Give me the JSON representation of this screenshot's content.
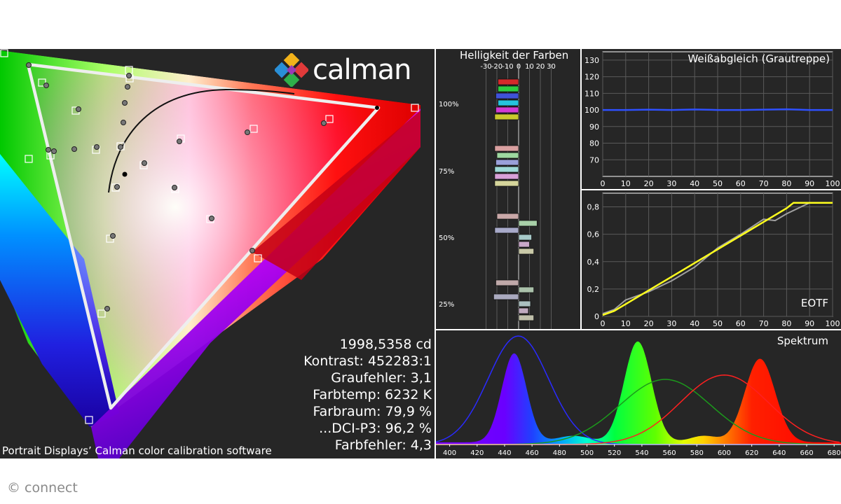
{
  "branding": {
    "logo_text": "calman",
    "caption": "Portrait Displays’ Calman color calibration software",
    "copyright": "© connect"
  },
  "stats": [
    "1998,5358 cd",
    "Kontrast: 452283:1",
    "Graufehler: 3,1",
    "Farbtemp: 6232 K",
    "Farbraum: 79,9 %",
    "...DCI-P3: 96,2 %",
    "Farbfehler: 4,3"
  ],
  "chart_data": [
    {
      "type": "scatter",
      "title": "",
      "description": "CIE chromaticity gamut plot with target triangle, measured points, and Planckian locus",
      "grid": false
    },
    {
      "type": "bar",
      "title": "Helligkeit der Farben",
      "x_ticks": [
        "-30",
        "-20",
        "-10",
        "0",
        "10",
        "20",
        "30"
      ],
      "xlim": [
        -30,
        30
      ],
      "group_labels": [
        "100%",
        "75%",
        "50%",
        "25%"
      ],
      "groups": [
        {
          "label": "100%",
          "bars": [
            {
              "color": "#d42a2a",
              "value": -19
            },
            {
              "color": "#2ecc40",
              "value": -19
            },
            {
              "color": "#3f52d8",
              "value": -21
            },
            {
              "color": "#26c3dd",
              "value": -19
            },
            {
              "color": "#d23ad2",
              "value": -21
            },
            {
              "color": "#c9c92c",
              "value": -22
            }
          ]
        },
        {
          "label": "75%",
          "bars": [
            {
              "color": "#d9a0a0",
              "value": -22
            },
            {
              "color": "#9ed8a0",
              "value": -20
            },
            {
              "color": "#9aa0d9",
              "value": -21
            },
            {
              "color": "#9ed9d6",
              "value": -22
            },
            {
              "color": "#d8a0d8",
              "value": -22
            },
            {
              "color": "#d5d59b",
              "value": -22
            }
          ]
        },
        {
          "label": "50%",
          "bars": [
            {
              "color": "#c9a8a8",
              "value": -20
            },
            {
              "color": "#a8d0a8",
              "value": 17
            },
            {
              "color": "#a8aac9",
              "value": -22
            },
            {
              "color": "#a8cac9",
              "value": 12
            },
            {
              "color": "#c9a8c9",
              "value": 10
            },
            {
              "color": "#c9c9a8",
              "value": 14
            }
          ]
        },
        {
          "label": "25%",
          "bars": [
            {
              "color": "#bfa9a9",
              "value": -21
            },
            {
              "color": "#aac1aa",
              "value": 14
            },
            {
              "color": "#aaaabf",
              "value": -23
            },
            {
              "color": "#aabfbf",
              "value": 11
            },
            {
              "color": "#bfaabf",
              "value": 9
            },
            {
              "color": "#bfbfaa",
              "value": 14
            }
          ]
        }
      ]
    },
    {
      "type": "line",
      "title": "Weißabgleich (Grautreppe)",
      "xlim": [
        0,
        100
      ],
      "ylim": [
        60,
        135
      ],
      "x_ticks": [
        0,
        10,
        20,
        30,
        40,
        50,
        60,
        70,
        80,
        90,
        100
      ],
      "y_ticks": [
        70,
        80,
        90,
        100,
        110,
        120,
        130
      ],
      "series": [
        {
          "color": "#2e50ff",
          "x": [
            0,
            10,
            20,
            30,
            40,
            50,
            60,
            70,
            80,
            90,
            100
          ],
          "y": [
            100,
            100,
            100.2,
            100,
            100.3,
            100,
            100,
            100.2,
            100.4,
            100,
            100
          ]
        }
      ]
    },
    {
      "type": "line",
      "title": "EOTF",
      "xlim": [
        0,
        100
      ],
      "ylim": [
        0,
        0.9
      ],
      "x_ticks": [
        0,
        10,
        20,
        30,
        40,
        50,
        60,
        70,
        80,
        90,
        100
      ],
      "y_ticks": [
        "0",
        "0,2",
        "0,4",
        "0,6",
        "0,8"
      ],
      "series": [
        {
          "color": "#ffff1e",
          "x": [
            0,
            5,
            10,
            20,
            30,
            40,
            50,
            60,
            70,
            80,
            83,
            90,
            100
          ],
          "y": [
            0.01,
            0.04,
            0.09,
            0.19,
            0.29,
            0.39,
            0.49,
            0.59,
            0.69,
            0.79,
            0.83,
            0.83,
            0.83
          ]
        },
        {
          "color": "#a0a0a0",
          "x": [
            0,
            5,
            10,
            20,
            30,
            40,
            50,
            60,
            70,
            75,
            80,
            90,
            100
          ],
          "y": [
            0.02,
            0.05,
            0.12,
            0.18,
            0.26,
            0.36,
            0.5,
            0.6,
            0.71,
            0.7,
            0.75,
            0.83,
            0.83
          ]
        }
      ]
    },
    {
      "type": "area",
      "title": "Spektrum",
      "xlim": [
        390,
        685
      ],
      "x_ticks": [
        400,
        420,
        440,
        460,
        480,
        500,
        520,
        540,
        560,
        580,
        600,
        620,
        640,
        660,
        680
      ],
      "peaks": [
        {
          "center": 447,
          "width": 9,
          "height": 0.82
        },
        {
          "center": 537,
          "width": 10,
          "height": 0.93
        },
        {
          "center": 626,
          "width": 11,
          "height": 0.77
        }
      ],
      "reference_curves": [
        {
          "color": "#2a2aff",
          "center": 450,
          "width": 22,
          "height": 1.0
        },
        {
          "color": "#1c9a1c",
          "center": 557,
          "width": 33,
          "height": 0.6
        },
        {
          "color": "#ff2020",
          "center": 600,
          "width": 32,
          "height": 0.64
        }
      ]
    }
  ]
}
